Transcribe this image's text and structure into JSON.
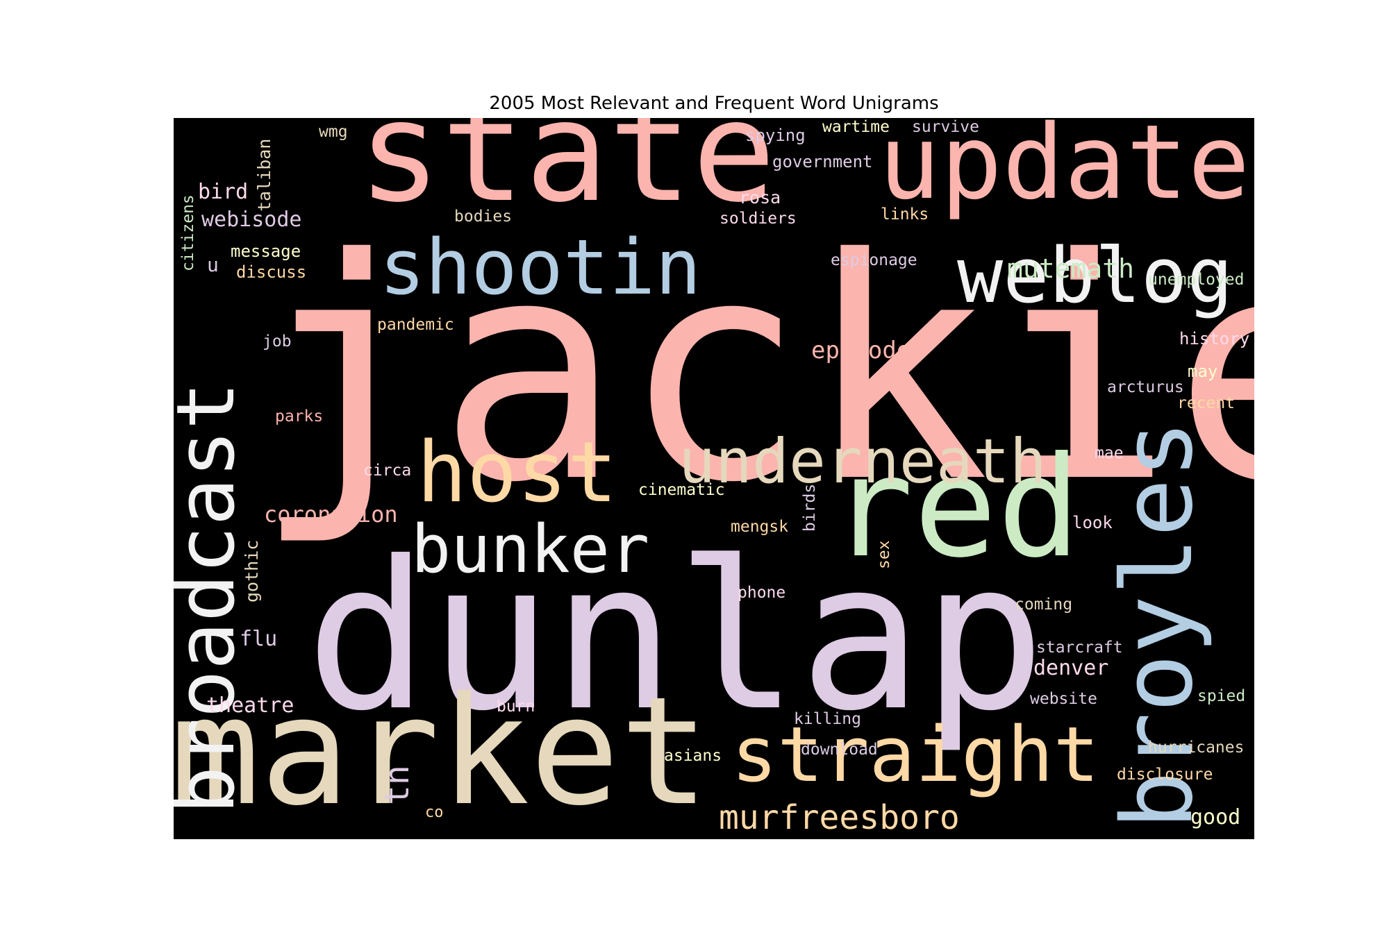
{
  "title": "2005 Most Relevant and Frequent Word Unigrams",
  "background": "#000000",
  "palette": {
    "pink": "#fbb4ae",
    "blue": "#b3cde3",
    "green": "#ccebc5",
    "lavender": "#decbe4",
    "orange": "#fed9a6",
    "yellow": "#ffffcc",
    "tan": "#e5d8bd",
    "rose": "#fddaec",
    "gray": "#f2f2f2"
  },
  "words": [
    {
      "text": "jackie",
      "color": "pink",
      "orientation": "horizontal"
    },
    {
      "text": "dunlap",
      "color": "lavender",
      "orientation": "horizontal"
    },
    {
      "text": "market",
      "color": "tan",
      "orientation": "horizontal"
    },
    {
      "text": "state",
      "color": "pink",
      "orientation": "horizontal"
    },
    {
      "text": "update",
      "color": "pink",
      "orientation": "horizontal"
    },
    {
      "text": "broyles",
      "color": "blue",
      "orientation": "vertical"
    },
    {
      "text": "red",
      "color": "green",
      "orientation": "horizontal"
    },
    {
      "text": "broadcast",
      "color": "gray",
      "orientation": "vertical"
    },
    {
      "text": "shootin",
      "color": "blue",
      "orientation": "horizontal"
    },
    {
      "text": "weblog",
      "color": "gray",
      "orientation": "horizontal"
    },
    {
      "text": "host",
      "color": "orange",
      "orientation": "horizontal"
    },
    {
      "text": "straight",
      "color": "orange",
      "orientation": "horizontal"
    },
    {
      "text": "underneath",
      "color": "tan",
      "orientation": "horizontal"
    },
    {
      "text": "bunker",
      "color": "gray",
      "orientation": "horizontal"
    },
    {
      "text": "murfreesboro",
      "color": "orange",
      "orientation": "horizontal"
    },
    {
      "text": "mutemath",
      "color": "green",
      "orientation": "horizontal"
    },
    {
      "text": "episode",
      "color": "pink",
      "orientation": "horizontal"
    },
    {
      "text": "coronation",
      "color": "pink",
      "orientation": "horizontal"
    },
    {
      "text": "webisode",
      "color": "lavender",
      "orientation": "horizontal"
    },
    {
      "text": "theatre",
      "color": "rose",
      "orientation": "horizontal"
    },
    {
      "text": "denver",
      "color": "rose",
      "orientation": "horizontal"
    },
    {
      "text": "bird",
      "color": "rose",
      "orientation": "horizontal"
    },
    {
      "text": "good",
      "color": "yellow",
      "orientation": "horizontal"
    },
    {
      "text": "tn",
      "color": "lavender",
      "orientation": "vertical"
    },
    {
      "text": "gothic",
      "color": "tan",
      "orientation": "vertical"
    },
    {
      "text": "flu",
      "color": "lavender",
      "orientation": "horizontal"
    },
    {
      "text": "taliban",
      "color": "tan",
      "orientation": "vertical"
    },
    {
      "text": "citizens",
      "color": "green",
      "orientation": "vertical"
    },
    {
      "text": "wmg",
      "color": "tan",
      "orientation": "horizontal"
    },
    {
      "text": "u",
      "color": "lavender",
      "orientation": "horizontal"
    },
    {
      "text": "message",
      "color": "yellow",
      "orientation": "horizontal"
    },
    {
      "text": "discuss",
      "color": "orange",
      "orientation": "horizontal"
    },
    {
      "text": "bodies",
      "color": "tan",
      "orientation": "horizontal"
    },
    {
      "text": "spying",
      "color": "lavender",
      "orientation": "horizontal"
    },
    {
      "text": "wartime",
      "color": "yellow",
      "orientation": "horizontal"
    },
    {
      "text": "survive",
      "color": "lavender",
      "orientation": "horizontal"
    },
    {
      "text": "government",
      "color": "lavender",
      "orientation": "horizontal"
    },
    {
      "text": "rosa",
      "color": "rose",
      "orientation": "horizontal"
    },
    {
      "text": "soldiers",
      "color": "rose",
      "orientation": "horizontal"
    },
    {
      "text": "links",
      "color": "orange",
      "orientation": "horizontal"
    },
    {
      "text": "espionage",
      "color": "lavender",
      "orientation": "horizontal"
    },
    {
      "text": "unemployed",
      "color": "green",
      "orientation": "horizontal"
    },
    {
      "text": "pandemic",
      "color": "orange",
      "orientation": "horizontal"
    },
    {
      "text": "job",
      "color": "lavender",
      "orientation": "horizontal"
    },
    {
      "text": "history",
      "color": "rose",
      "orientation": "horizontal"
    },
    {
      "text": "may",
      "color": "yellow",
      "orientation": "horizontal"
    },
    {
      "text": "arcturus",
      "color": "lavender",
      "orientation": "horizontal"
    },
    {
      "text": "recent",
      "color": "orange",
      "orientation": "horizontal"
    },
    {
      "text": "parks",
      "color": "pink",
      "orientation": "horizontal"
    },
    {
      "text": "mae",
      "color": "rose",
      "orientation": "horizontal"
    },
    {
      "text": "circa",
      "color": "rose",
      "orientation": "horizontal"
    },
    {
      "text": "cinematic",
      "color": "yellow",
      "orientation": "horizontal"
    },
    {
      "text": "birds",
      "color": "lavender",
      "orientation": "vertical"
    },
    {
      "text": "mengsk",
      "color": "orange",
      "orientation": "horizontal"
    },
    {
      "text": "sex",
      "color": "orange",
      "orientation": "vertical"
    },
    {
      "text": "look",
      "color": "rose",
      "orientation": "horizontal"
    },
    {
      "text": "phone",
      "color": "rose",
      "orientation": "horizontal"
    },
    {
      "text": "coming",
      "color": "tan",
      "orientation": "horizontal"
    },
    {
      "text": "starcraft",
      "color": "lavender",
      "orientation": "horizontal"
    },
    {
      "text": "website",
      "color": "lavender",
      "orientation": "horizontal"
    },
    {
      "text": "spied",
      "color": "green",
      "orientation": "horizontal"
    },
    {
      "text": "burn",
      "color": "rose",
      "orientation": "horizontal"
    },
    {
      "text": "killing",
      "color": "lavender",
      "orientation": "horizontal"
    },
    {
      "text": "download",
      "color": "lavender",
      "orientation": "horizontal"
    },
    {
      "text": "asians",
      "color": "yellow",
      "orientation": "horizontal"
    },
    {
      "text": "hurricanes",
      "color": "tan",
      "orientation": "horizontal"
    },
    {
      "text": "disclosure",
      "color": "orange",
      "orientation": "horizontal"
    },
    {
      "text": "co",
      "color": "orange",
      "orientation": "horizontal"
    }
  ]
}
